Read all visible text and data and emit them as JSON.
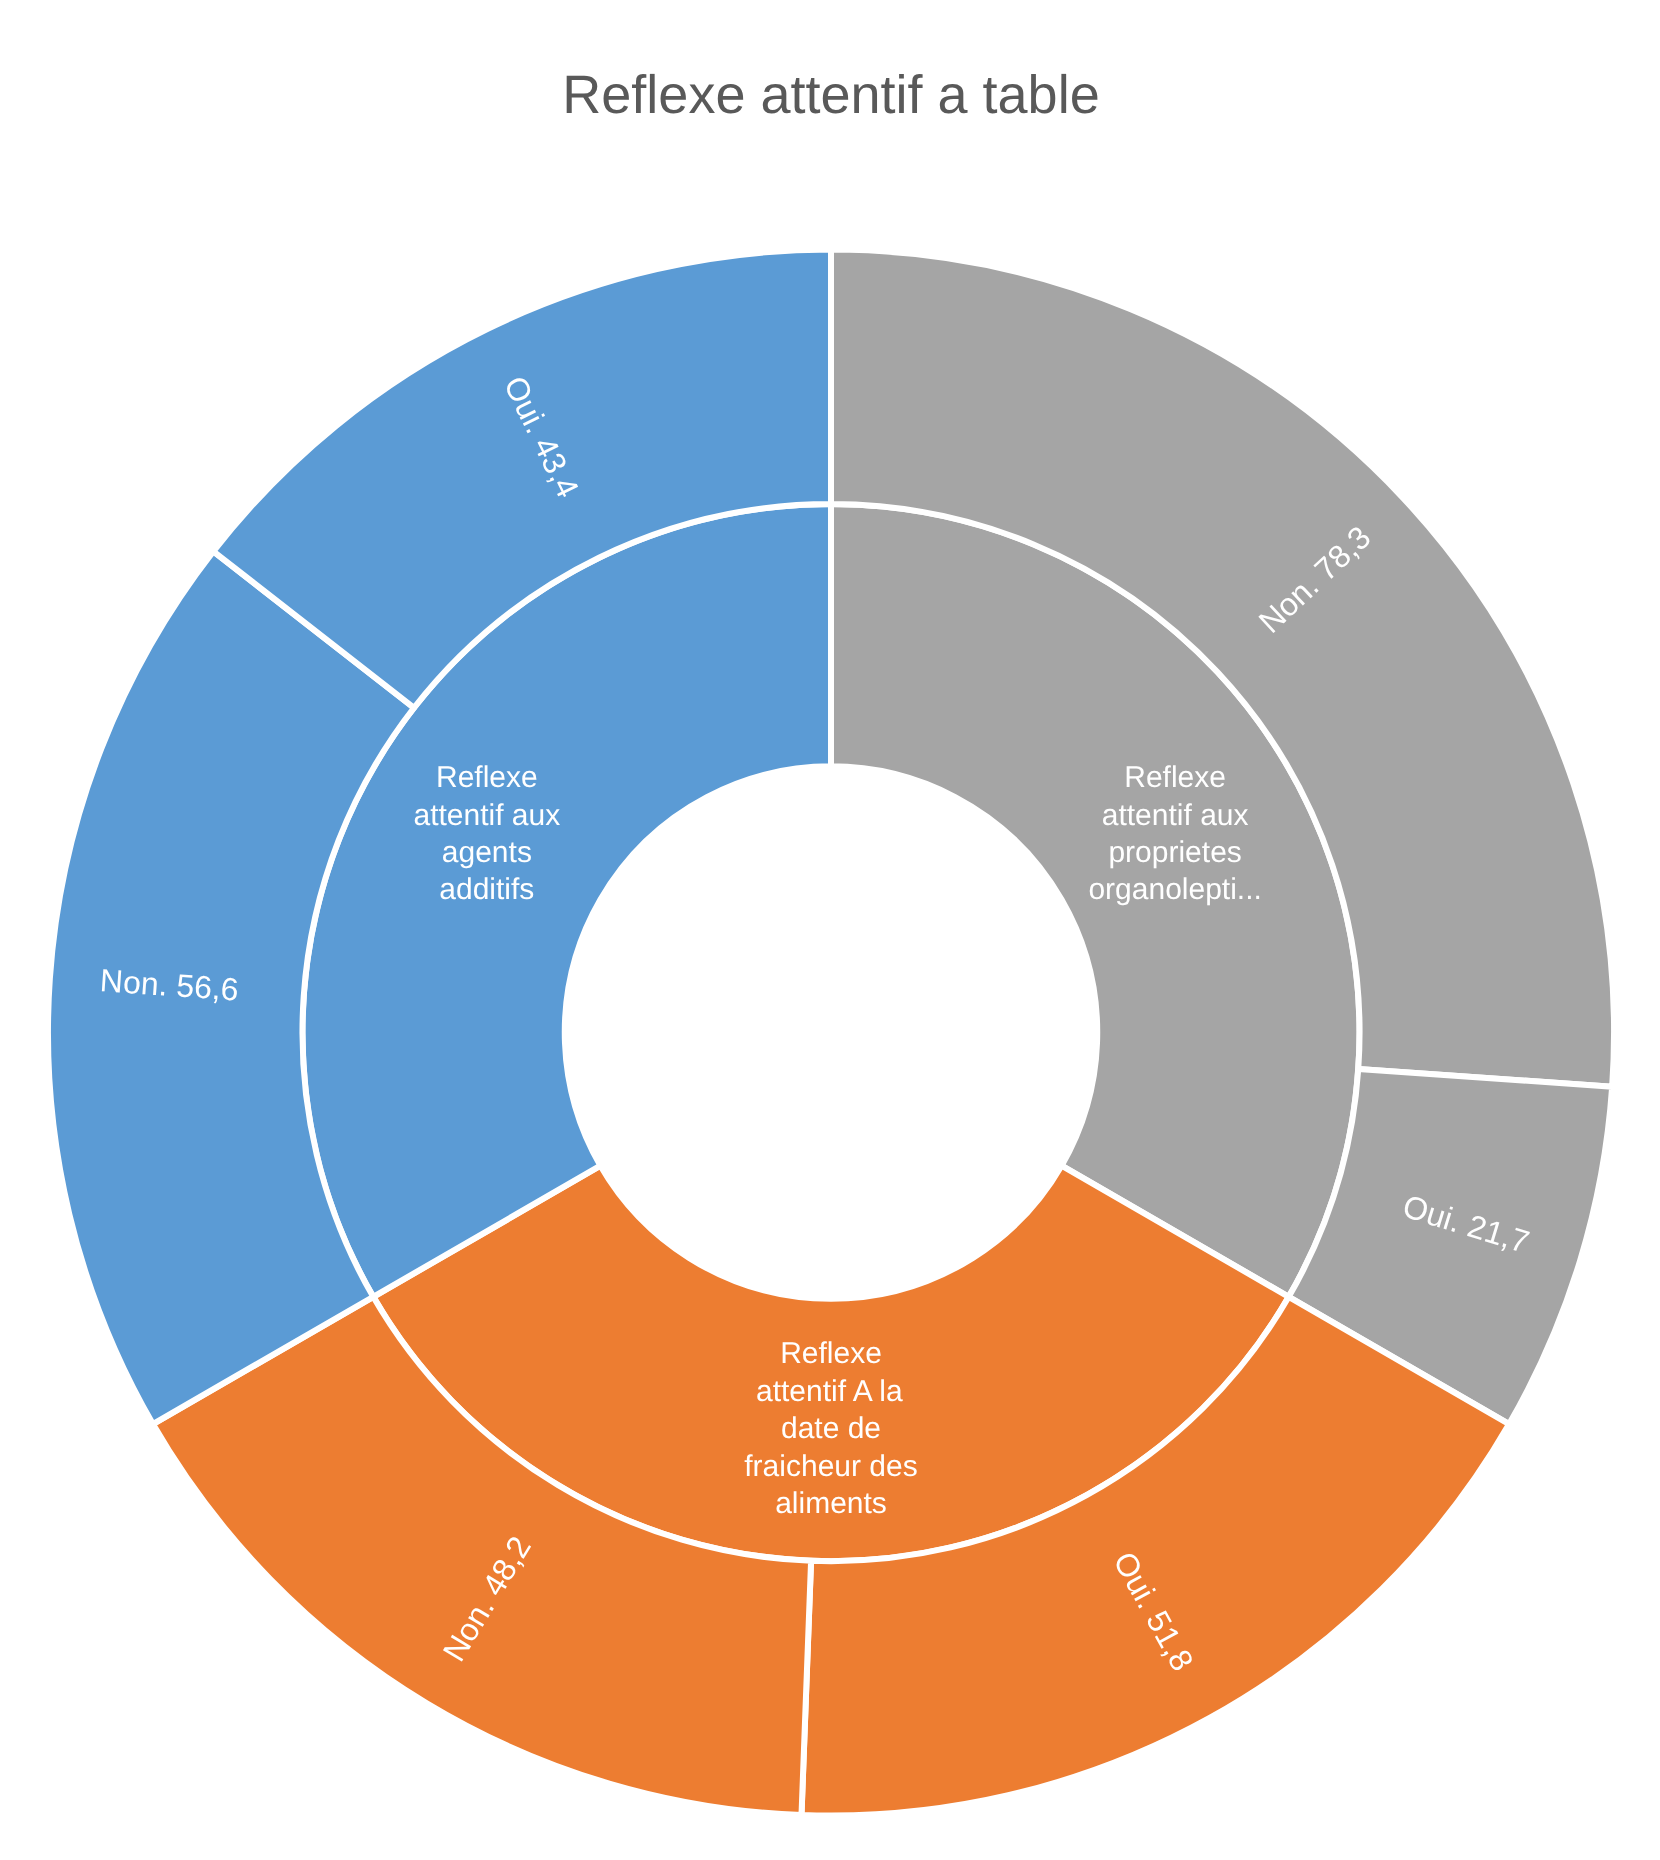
{
  "chart_data": {
    "type": "donut",
    "title": "Reflexe attentif a table",
    "series": [
      {
        "values": [
          33.3,
          33.3,
          33.3
        ],
        "value_labels": [
          "Reflexe attentif aux proprietes organolepti...",
          "Reflexe attentif A la date de fraicheur des aliments",
          "Reflexe attentif aux agents additifs"
        ],
        "colors": [
          "#a5a5a5",
          "#ed7d31",
          "#5b9bd5"
        ]
      },
      {
        "values": [
          78.3,
          21.7,
          51.8,
          48.2,
          56.6,
          43.4
        ],
        "value_labels": [
          "Non. 78,3",
          "Oui. 21,7",
          "Oui. 51,8",
          "Non. 48,2",
          "Non. 56,6",
          "Oui. 43,4"
        ],
        "colors": [
          "#a5a5a5",
          "#a5a5a5",
          "#ed7d31",
          "#ed7d31",
          "#5b9bd5",
          "#5b9bd5"
        ]
      }
    ]
  }
}
